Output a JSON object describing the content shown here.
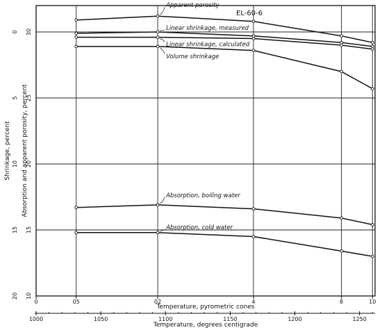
{
  "chart_data": {
    "type": "line",
    "annotation": "EL-60-6",
    "y_ticks_outer": {
      "label": "Shrinkage, percent",
      "values": [
        "0",
        "5",
        "10",
        "15",
        "20"
      ]
    },
    "y_ticks_inner": {
      "label": "Absorption and apparent porosity, percent",
      "values": [
        "30",
        "25",
        "20",
        "15",
        "10"
      ]
    },
    "x_axis_top": {
      "label": "Temperature, pyrometric cones",
      "ticks": [
        {
          "label": "0",
          "temp": 1000
        },
        {
          "label": "05",
          "temp": 1031
        },
        {
          "label": "02",
          "temp": 1094
        },
        {
          "label": "4",
          "temp": 1168
        },
        {
          "label": "8",
          "temp": 1236
        },
        {
          "label": "10",
          "temp": 1260
        }
      ]
    },
    "x_axis_bottom": {
      "label": "Temperature, degrees centigrade",
      "ticks": [
        "1000",
        "1050",
        "1100",
        "1150",
        "1200",
        "1250"
      ]
    },
    "xlim": [
      1000,
      1262
    ],
    "ylim_porosity": [
      10,
      32
    ],
    "series": [
      {
        "name": "Apparent porosity",
        "axis": "porosity",
        "x": [
          1031,
          1094,
          1168,
          1236,
          1260
        ],
        "y": [
          30.9,
          31.2,
          30.8,
          29.7,
          29.2
        ]
      },
      {
        "name": "Linear shrinkage, measured",
        "axis": "porosity",
        "x": [
          1031,
          1094,
          1168,
          1236,
          1260
        ],
        "y": [
          29.9,
          30.0,
          29.7,
          29.2,
          28.9
        ]
      },
      {
        "name": "Linear shrinkage, calculated",
        "axis": "porosity",
        "x": [
          1031,
          1094,
          1168,
          1236,
          1260
        ],
        "y": [
          29.6,
          29.6,
          29.5,
          29.0,
          28.7
        ]
      },
      {
        "name": "Volume shrinkage",
        "axis": "porosity",
        "x": [
          1031,
          1094,
          1168,
          1236,
          1260
        ],
        "y": [
          28.9,
          28.9,
          28.6,
          27.0,
          25.7
        ]
      },
      {
        "name": "Absorption, boiling water",
        "axis": "porosity",
        "x": [
          1031,
          1094,
          1168,
          1236,
          1260
        ],
        "y": [
          16.7,
          16.9,
          16.6,
          15.9,
          15.4
        ]
      },
      {
        "name": "Absorption, cold water",
        "axis": "porosity",
        "x": [
          1031,
          1094,
          1168,
          1236,
          1260
        ],
        "y": [
          14.8,
          14.8,
          14.5,
          13.4,
          13.0
        ]
      }
    ],
    "grid": true
  }
}
